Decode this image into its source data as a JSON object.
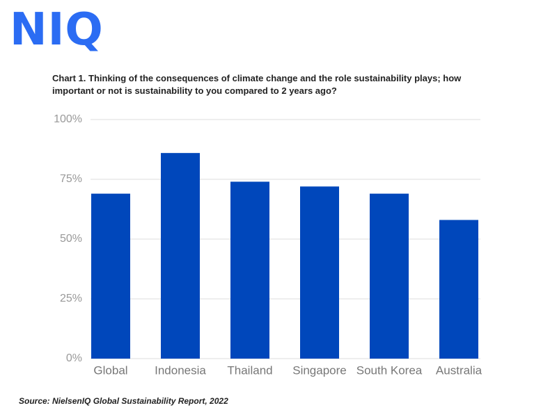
{
  "logo": "NIQ",
  "chart_data": {
    "type": "bar",
    "title": "Chart 1. Thinking of the consequences of climate change and the role sustainability plays; how important or not is sustainability to you compared to 2 years ago?",
    "categories": [
      "Global",
      "Indonesia",
      "Thailand",
      "Singapore",
      "South Korea",
      "Australia"
    ],
    "values": [
      69,
      86,
      74,
      72,
      69,
      58
    ],
    "color": "#0047bb",
    "ylim": [
      0,
      100
    ],
    "yticks": [
      {
        "value": 0,
        "label": "0%"
      },
      {
        "value": 25,
        "label": "25%"
      },
      {
        "value": 50,
        "label": "50%"
      },
      {
        "value": 75,
        "label": "75%"
      },
      {
        "value": 100,
        "label": "100%"
      }
    ],
    "grid": true,
    "source": "Source: NielsenIQ Global Sustainability Report, 2022"
  }
}
